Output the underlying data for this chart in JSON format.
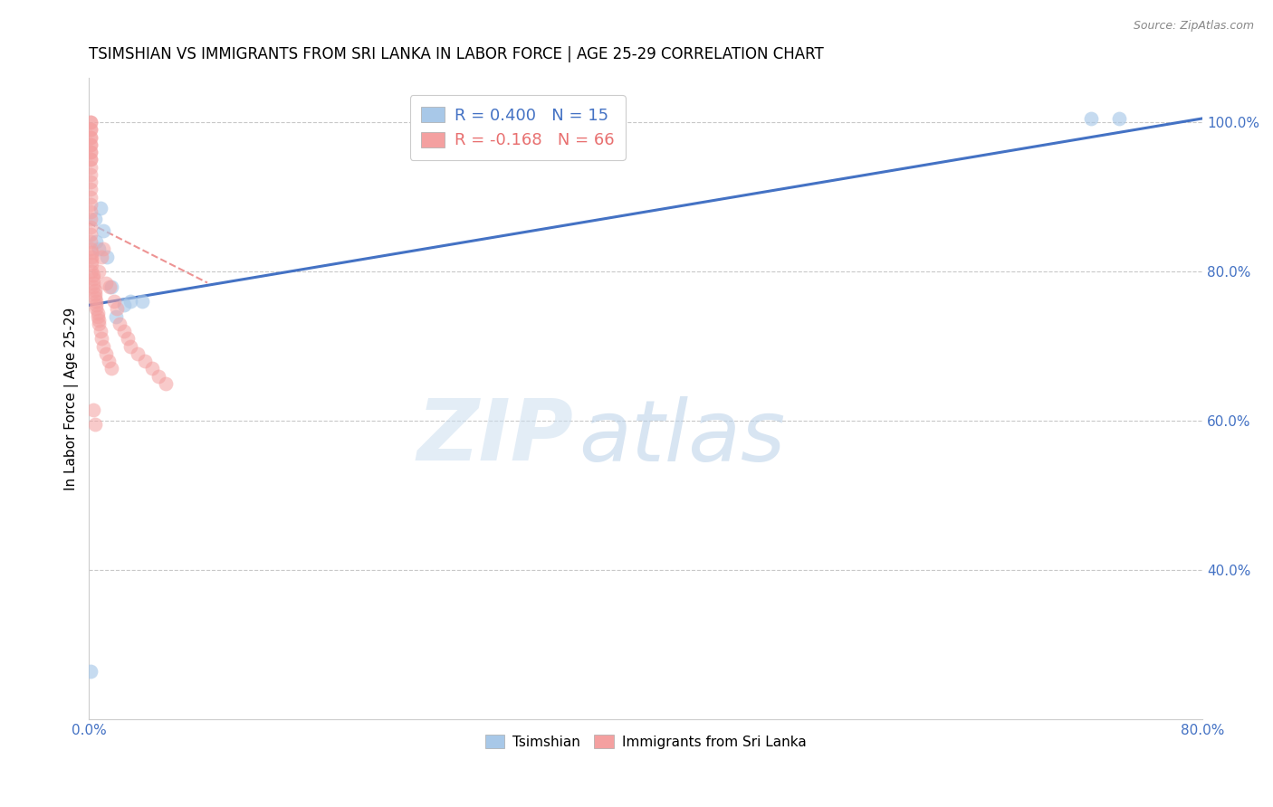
{
  "title": "TSIMSHIAN VS IMMIGRANTS FROM SRI LANKA IN LABOR FORCE | AGE 25-29 CORRELATION CHART",
  "source": "Source: ZipAtlas.com",
  "ylabel": "In Labor Force | Age 25-29",
  "xlim": [
    0.0,
    0.8
  ],
  "ylim": [
    0.2,
    1.06
  ],
  "xticks": [
    0.0,
    0.1,
    0.2,
    0.3,
    0.4,
    0.5,
    0.6,
    0.7,
    0.8
  ],
  "xticklabels": [
    "0.0%",
    "",
    "",
    "",
    "",
    "",
    "",
    "",
    "80.0%"
  ],
  "yticks": [
    0.4,
    0.6,
    0.8,
    1.0
  ],
  "yticklabels": [
    "40.0%",
    "60.0%",
    "80.0%",
    "100.0%"
  ],
  "tsimshian_color": "#a8c8e8",
  "srilanka_color": "#f4a0a0",
  "blue_line_color": "#4472c4",
  "pink_line_color": "#e87070",
  "blue_line_x": [
    0.0,
    0.8
  ],
  "blue_line_y": [
    0.755,
    1.005
  ],
  "pink_line_x": [
    0.0,
    0.085
  ],
  "pink_line_y": [
    0.865,
    0.785
  ],
  "tsimshian_points": [
    [
      0.001,
      0.265
    ],
    [
      0.004,
      0.87
    ],
    [
      0.005,
      0.84
    ],
    [
      0.007,
      0.83
    ],
    [
      0.008,
      0.885
    ],
    [
      0.01,
      0.855
    ],
    [
      0.013,
      0.82
    ],
    [
      0.016,
      0.78
    ],
    [
      0.019,
      0.74
    ],
    [
      0.025,
      0.755
    ],
    [
      0.03,
      0.76
    ],
    [
      0.038,
      0.76
    ],
    [
      0.72,
      1.005
    ],
    [
      0.74,
      1.005
    ]
  ],
  "srilanka_points": [
    [
      0.001,
      1.0
    ],
    [
      0.001,
      1.0
    ],
    [
      0.001,
      0.99
    ],
    [
      0.001,
      0.99
    ],
    [
      0.001,
      0.98
    ],
    [
      0.001,
      0.98
    ],
    [
      0.001,
      0.97
    ],
    [
      0.001,
      0.97
    ],
    [
      0.001,
      0.96
    ],
    [
      0.001,
      0.96
    ],
    [
      0.001,
      0.95
    ],
    [
      0.001,
      0.95
    ],
    [
      0.001,
      0.94
    ],
    [
      0.001,
      0.93
    ],
    [
      0.001,
      0.92
    ],
    [
      0.001,
      0.91
    ],
    [
      0.001,
      0.9
    ],
    [
      0.001,
      0.89
    ],
    [
      0.001,
      0.88
    ],
    [
      0.001,
      0.87
    ],
    [
      0.001,
      0.86
    ],
    [
      0.001,
      0.85
    ],
    [
      0.001,
      0.84
    ],
    [
      0.001,
      0.83
    ],
    [
      0.002,
      0.825
    ],
    [
      0.002,
      0.82
    ],
    [
      0.002,
      0.815
    ],
    [
      0.002,
      0.81
    ],
    [
      0.002,
      0.8
    ],
    [
      0.003,
      0.795
    ],
    [
      0.003,
      0.79
    ],
    [
      0.003,
      0.785
    ],
    [
      0.003,
      0.78
    ],
    [
      0.004,
      0.775
    ],
    [
      0.004,
      0.77
    ],
    [
      0.004,
      0.765
    ],
    [
      0.005,
      0.76
    ],
    [
      0.005,
      0.755
    ],
    [
      0.005,
      0.75
    ],
    [
      0.006,
      0.745
    ],
    [
      0.006,
      0.74
    ],
    [
      0.007,
      0.735
    ],
    [
      0.007,
      0.73
    ],
    [
      0.008,
      0.72
    ],
    [
      0.009,
      0.71
    ],
    [
      0.01,
      0.7
    ],
    [
      0.012,
      0.69
    ],
    [
      0.014,
      0.68
    ],
    [
      0.016,
      0.67
    ],
    [
      0.003,
      0.615
    ],
    [
      0.004,
      0.595
    ],
    [
      0.007,
      0.8
    ],
    [
      0.009,
      0.82
    ],
    [
      0.01,
      0.83
    ],
    [
      0.012,
      0.785
    ],
    [
      0.015,
      0.78
    ],
    [
      0.018,
      0.76
    ],
    [
      0.02,
      0.75
    ],
    [
      0.022,
      0.73
    ],
    [
      0.025,
      0.72
    ],
    [
      0.028,
      0.71
    ],
    [
      0.03,
      0.7
    ],
    [
      0.035,
      0.69
    ],
    [
      0.04,
      0.68
    ],
    [
      0.045,
      0.67
    ],
    [
      0.05,
      0.66
    ],
    [
      0.055,
      0.65
    ]
  ],
  "watermark_zip": "ZIP",
  "watermark_atlas": "atlas",
  "background_color": "#ffffff",
  "title_fontsize": 12,
  "tick_color": "#4472c4",
  "grid_color": "#c8c8c8"
}
